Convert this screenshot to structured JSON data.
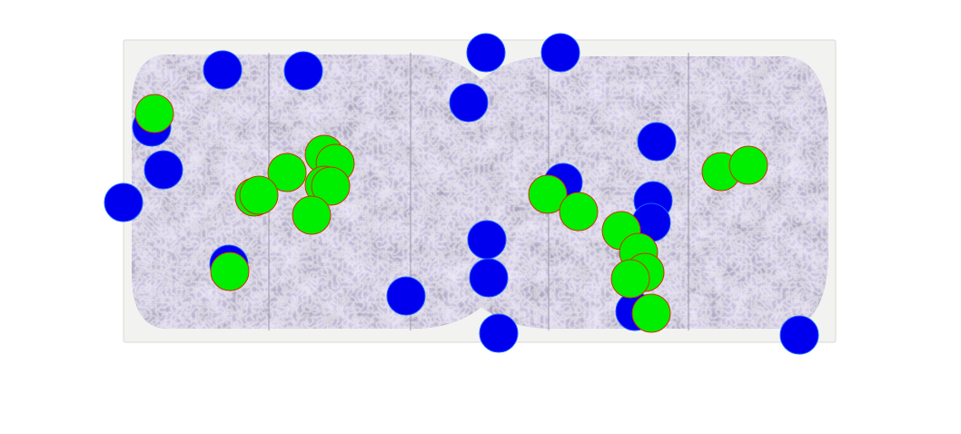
{
  "image": {
    "description_role": "artwork-photo",
    "background_color": "#ffffff",
    "panel_color": "#f2f2f0",
    "painting_base_color": "#a8a4bf",
    "panel_divider_color": "#9a97ad"
  },
  "markers": {
    "blue": {
      "fill": "#0000ee",
      "stroke": "#1a5cff"
    },
    "green": {
      "fill": "#00ee00",
      "stroke": "#cc3300"
    }
  }
}
